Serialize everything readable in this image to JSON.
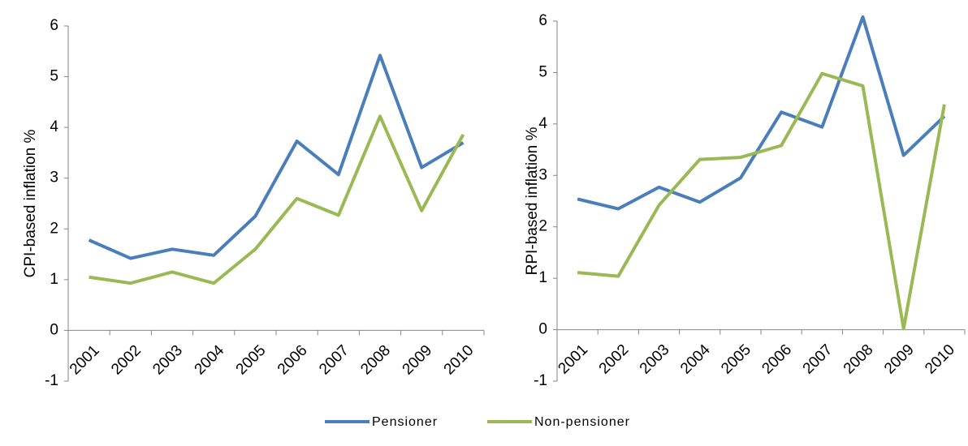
{
  "chart_data": [
    {
      "type": "line",
      "y_label": "CPI-based inflation %",
      "categories": [
        "2001",
        "2002",
        "2003",
        "2004",
        "2005",
        "2006",
        "2007",
        "2008",
        "2009",
        "2010"
      ],
      "series": [
        {
          "name": "Pensioner",
          "color": "#4a7ebb",
          "values": [
            1.78,
            1.42,
            1.6,
            1.48,
            2.25,
            3.73,
            3.07,
            5.42,
            3.21,
            3.7
          ]
        },
        {
          "name": "Non-pensioner",
          "color": "#98b954",
          "values": [
            1.05,
            0.93,
            1.15,
            0.93,
            1.6,
            2.6,
            2.27,
            4.22,
            2.36,
            3.86
          ]
        }
      ],
      "ylim": [
        -1,
        6
      ],
      "yticks": [
        -1,
        0,
        1,
        2,
        3,
        4,
        5,
        6
      ]
    },
    {
      "type": "line",
      "y_label": "RPI-based inflation %",
      "categories": [
        "2001",
        "2002",
        "2003",
        "2004",
        "2005",
        "2006",
        "2007",
        "2008",
        "2009",
        "2010"
      ],
      "series": [
        {
          "name": "Pensioner",
          "color": "#4a7ebb",
          "values": [
            2.54,
            2.35,
            2.77,
            2.48,
            2.95,
            4.23,
            3.94,
            6.08,
            3.39,
            4.15
          ]
        },
        {
          "name": "Non-pensioner",
          "color": "#98b954",
          "values": [
            1.11,
            1.04,
            2.42,
            3.31,
            3.35,
            3.58,
            4.98,
            4.74,
            0.02,
            4.38
          ]
        }
      ],
      "ylim": [
        -1,
        6
      ],
      "yticks": [
        -1,
        0,
        1,
        2,
        3,
        4,
        5,
        6
      ]
    }
  ]
}
